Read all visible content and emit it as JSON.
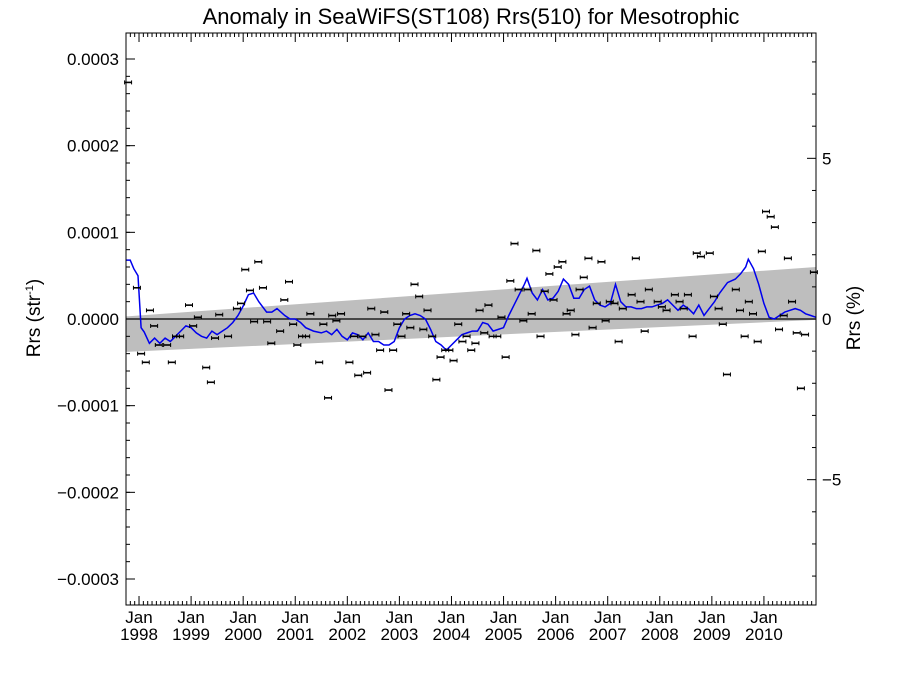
{
  "chart_data": {
    "type": "scatter",
    "title": "Anomaly in SeaWiFS(ST108) Rrs(510) for Mesotrophic",
    "ylabel_base": "Rrs (str",
    "ylabel_sup": "-1",
    "ylabel_end": ")",
    "y2label": "Rrs (%)",
    "xlim": [
      1997.75,
      2011.0
    ],
    "ylim": [
      -0.00033,
      0.00033
    ],
    "y2lim": [
      -8.9,
      8.9
    ],
    "y_ticks": [
      -0.0003,
      -0.0002,
      -0.0001,
      0.0,
      0.0001,
      0.0002,
      0.0003
    ],
    "y_tick_labels": [
      "−0.0003",
      "−0.0002",
      "−0.0001",
      "0.0000",
      "0.0001",
      "0.0002",
      "0.0003"
    ],
    "y2_ticks": [
      -5,
      0,
      5
    ],
    "y2_tick_labels": [
      "−5",
      "0",
      "5"
    ],
    "x_ticks": [
      {
        "x": 1998.0,
        "label1": "Jan",
        "label2": "1998"
      },
      {
        "x": 1999.0,
        "label1": "Jan",
        "label2": "1999"
      },
      {
        "x": 2000.0,
        "label1": "Jan",
        "label2": "2000"
      },
      {
        "x": 2001.0,
        "label1": "Jan",
        "label2": "2001"
      },
      {
        "x": 2002.0,
        "label1": "Jan",
        "label2": "2002"
      },
      {
        "x": 2003.0,
        "label1": "Jan",
        "label2": "2003"
      },
      {
        "x": 2004.0,
        "label1": "Jan",
        "label2": "2004"
      },
      {
        "x": 2005.0,
        "label1": "Jan",
        "label2": "2005"
      },
      {
        "x": 2006.0,
        "label1": "Jan",
        "label2": "2006"
      },
      {
        "x": 2007.0,
        "label1": "Jan",
        "label2": "2007"
      },
      {
        "x": 2008.0,
        "label1": "Jan",
        "label2": "2008"
      },
      {
        "x": 2009.0,
        "label1": "Jan",
        "label2": "2009"
      },
      {
        "x": 2010.0,
        "label1": "Jan",
        "label2": "2010"
      }
    ],
    "colors": {
      "smooth_line": "#0000ee",
      "trend_band": "#bebebe",
      "points": "#000000",
      "zero_line": "#000000"
    },
    "zero_line": 0.0,
    "trend_band": {
      "x": [
        1997.75,
        2011.0
      ],
      "upper": [
        3e-06,
        6e-05
      ],
      "lower": [
        -3.8e-05,
        -1e-06
      ]
    },
    "points": [
      {
        "x": 1997.79,
        "y": 0.000273
      },
      {
        "x": 1997.96,
        "y": 3.6e-05
      },
      {
        "x": 1998.04,
        "y": -4e-05
      },
      {
        "x": 1998.13,
        "y": -5e-05
      },
      {
        "x": 1998.21,
        "y": 1e-05
      },
      {
        "x": 1998.29,
        "y": -8e-06
      },
      {
        "x": 1998.38,
        "y": -3e-05
      },
      {
        "x": 1998.54,
        "y": -3e-05
      },
      {
        "x": 1998.63,
        "y": -5e-05
      },
      {
        "x": 1998.71,
        "y": -2e-05
      },
      {
        "x": 1998.79,
        "y": -2e-05
      },
      {
        "x": 1998.96,
        "y": 1.6e-05
      },
      {
        "x": 1999.04,
        "y": -8e-06
      },
      {
        "x": 1999.13,
        "y": 2e-06
      },
      {
        "x": 1999.29,
        "y": -5.6e-05
      },
      {
        "x": 1999.38,
        "y": -7.3e-05
      },
      {
        "x": 1999.46,
        "y": -2.2e-05
      },
      {
        "x": 1999.54,
        "y": 5e-06
      },
      {
        "x": 1999.71,
        "y": -2e-05
      },
      {
        "x": 1999.88,
        "y": 1.2e-05
      },
      {
        "x": 1999.96,
        "y": 1.8e-05
      },
      {
        "x": 2000.04,
        "y": 5.7e-05
      },
      {
        "x": 2000.13,
        "y": 3.3e-05
      },
      {
        "x": 2000.21,
        "y": -3e-06
      },
      {
        "x": 2000.29,
        "y": 6.6e-05
      },
      {
        "x": 2000.38,
        "y": 3.6e-05
      },
      {
        "x": 2000.46,
        "y": -3e-06
      },
      {
        "x": 2000.54,
        "y": -2.8e-05
      },
      {
        "x": 2000.71,
        "y": -1.4e-05
      },
      {
        "x": 2000.79,
        "y": 2.2e-05
      },
      {
        "x": 2000.88,
        "y": 4.3e-05
      },
      {
        "x": 2000.96,
        "y": -6e-06
      },
      {
        "x": 2001.04,
        "y": -3e-05
      },
      {
        "x": 2001.13,
        "y": -2e-05
      },
      {
        "x": 2001.21,
        "y": -2e-05
      },
      {
        "x": 2001.29,
        "y": 6e-06
      },
      {
        "x": 2001.46,
        "y": -5e-05
      },
      {
        "x": 2001.54,
        "y": -6e-06
      },
      {
        "x": 2001.63,
        "y": -9.1e-05
      },
      {
        "x": 2001.71,
        "y": 4e-06
      },
      {
        "x": 2001.79,
        "y": -2e-06
      },
      {
        "x": 2001.88,
        "y": 6e-06
      },
      {
        "x": 2002.04,
        "y": -5e-05
      },
      {
        "x": 2002.13,
        "y": -2e-05
      },
      {
        "x": 2002.21,
        "y": -6.5e-05
      },
      {
        "x": 2002.29,
        "y": -2e-05
      },
      {
        "x": 2002.38,
        "y": -6.2e-05
      },
      {
        "x": 2002.46,
        "y": 1.2e-05
      },
      {
        "x": 2002.54,
        "y": -1.8e-05
      },
      {
        "x": 2002.63,
        "y": -3.6e-05
      },
      {
        "x": 2002.71,
        "y": 8e-06
      },
      {
        "x": 2002.79,
        "y": -8.2e-05
      },
      {
        "x": 2002.88,
        "y": -3.6e-05
      },
      {
        "x": 2002.96,
        "y": -6e-06
      },
      {
        "x": 2003.04,
        "y": -2e-05
      },
      {
        "x": 2003.13,
        "y": 6e-06
      },
      {
        "x": 2003.21,
        "y": -1e-05
      },
      {
        "x": 2003.29,
        "y": 4e-05
      },
      {
        "x": 2003.38,
        "y": 2.6e-05
      },
      {
        "x": 2003.46,
        "y": -1.2e-05
      },
      {
        "x": 2003.54,
        "y": 1e-05
      },
      {
        "x": 2003.63,
        "y": -2e-05
      },
      {
        "x": 2003.71,
        "y": -7e-05
      },
      {
        "x": 2003.79,
        "y": -4.4e-05
      },
      {
        "x": 2003.88,
        "y": -3.6e-05
      },
      {
        "x": 2003.96,
        "y": -3.6e-05
      },
      {
        "x": 2004.04,
        "y": -4.8e-05
      },
      {
        "x": 2004.13,
        "y": -6e-06
      },
      {
        "x": 2004.21,
        "y": -2.6e-05
      },
      {
        "x": 2004.29,
        "y": -2e-05
      },
      {
        "x": 2004.38,
        "y": -3.6e-05
      },
      {
        "x": 2004.46,
        "y": -2.8e-05
      },
      {
        "x": 2004.54,
        "y": 1e-05
      },
      {
        "x": 2004.63,
        "y": -1.6e-05
      },
      {
        "x": 2004.71,
        "y": 1.6e-05
      },
      {
        "x": 2004.79,
        "y": -2e-05
      },
      {
        "x": 2004.88,
        "y": -2e-05
      },
      {
        "x": 2004.96,
        "y": 2e-06
      },
      {
        "x": 2005.04,
        "y": -4.4e-05
      },
      {
        "x": 2005.13,
        "y": 4.4e-05
      },
      {
        "x": 2005.21,
        "y": 8.7e-05
      },
      {
        "x": 2005.29,
        "y": 3.4e-05
      },
      {
        "x": 2005.38,
        "y": -2e-06
      },
      {
        "x": 2005.46,
        "y": 3.4e-05
      },
      {
        "x": 2005.54,
        "y": 6e-06
      },
      {
        "x": 2005.63,
        "y": 7.9e-05
      },
      {
        "x": 2005.71,
        "y": -2e-05
      },
      {
        "x": 2005.79,
        "y": 3.2e-05
      },
      {
        "x": 2005.88,
        "y": 5.2e-05
      },
      {
        "x": 2005.96,
        "y": 2.2e-05
      },
      {
        "x": 2006.04,
        "y": 6e-05
      },
      {
        "x": 2006.13,
        "y": 6.6e-05
      },
      {
        "x": 2006.21,
        "y": 6e-06
      },
      {
        "x": 2006.29,
        "y": 1e-05
      },
      {
        "x": 2006.38,
        "y": -1.8e-05
      },
      {
        "x": 2006.46,
        "y": 3.4e-05
      },
      {
        "x": 2006.54,
        "y": 4.8e-05
      },
      {
        "x": 2006.63,
        "y": 7e-05
      },
      {
        "x": 2006.71,
        "y": -1e-05
      },
      {
        "x": 2006.79,
        "y": 1.8e-05
      },
      {
        "x": 2006.88,
        "y": 6.6e-05
      },
      {
        "x": 2006.96,
        "y": -2e-06
      },
      {
        "x": 2007.04,
        "y": 2e-05
      },
      {
        "x": 2007.13,
        "y": 1.8e-05
      },
      {
        "x": 2007.21,
        "y": -2.6e-05
      },
      {
        "x": 2007.29,
        "y": 1.2e-05
      },
      {
        "x": 2007.46,
        "y": 2.8e-05
      },
      {
        "x": 2007.54,
        "y": 7e-05
      },
      {
        "x": 2007.63,
        "y": 2e-05
      },
      {
        "x": 2007.71,
        "y": -1.4e-05
      },
      {
        "x": 2007.79,
        "y": 3.4e-05
      },
      {
        "x": 2007.96,
        "y": 2e-05
      },
      {
        "x": 2008.04,
        "y": 1.4e-05
      },
      {
        "x": 2008.13,
        "y": 1e-05
      },
      {
        "x": 2008.29,
        "y": 2.8e-05
      },
      {
        "x": 2008.38,
        "y": 2e-05
      },
      {
        "x": 2008.46,
        "y": 1.2e-05
      },
      {
        "x": 2008.54,
        "y": 2.8e-05
      },
      {
        "x": 2008.63,
        "y": -2e-05
      },
      {
        "x": 2008.71,
        "y": 7.6e-05
      },
      {
        "x": 2008.79,
        "y": 7.2e-05
      },
      {
        "x": 2008.96,
        "y": 7.6e-05
      },
      {
        "x": 2009.04,
        "y": 2.6e-05
      },
      {
        "x": 2009.13,
        "y": 1.2e-05
      },
      {
        "x": 2009.21,
        "y": -6e-06
      },
      {
        "x": 2009.29,
        "y": -6.4e-05
      },
      {
        "x": 2009.46,
        "y": 3.4e-05
      },
      {
        "x": 2009.54,
        "y": 1e-05
      },
      {
        "x": 2009.63,
        "y": -2e-05
      },
      {
        "x": 2009.71,
        "y": 2e-05
      },
      {
        "x": 2009.79,
        "y": 6e-06
      },
      {
        "x": 2009.88,
        "y": -2.6e-05
      },
      {
        "x": 2009.96,
        "y": 7.8e-05
      },
      {
        "x": 2010.04,
        "y": 0.000124
      },
      {
        "x": 2010.13,
        "y": 0.000118
      },
      {
        "x": 2010.21,
        "y": 0.000106
      },
      {
        "x": 2010.29,
        "y": -1.2e-05
      },
      {
        "x": 2010.38,
        "y": 4e-06
      },
      {
        "x": 2010.46,
        "y": 7e-05
      },
      {
        "x": 2010.54,
        "y": 2e-05
      },
      {
        "x": 2010.63,
        "y": -1.6e-05
      },
      {
        "x": 2010.71,
        "y": -8e-05
      },
      {
        "x": 2010.79,
        "y": -1.8e-05
      },
      {
        "x": 2010.96,
        "y": 5.4e-05
      }
    ],
    "smooth_line": [
      [
        1997.75,
        6.8e-05
      ],
      [
        1997.83,
        6.8e-05
      ],
      [
        1997.9,
        5.8e-05
      ],
      [
        1997.98,
        5e-05
      ],
      [
        1998.04,
        -1e-05
      ],
      [
        1998.1,
        -1.5e-05
      ],
      [
        1998.2,
        -2.8e-05
      ],
      [
        1998.3,
        -2.2e-05
      ],
      [
        1998.4,
        -2.8e-05
      ],
      [
        1998.5,
        -2.2e-05
      ],
      [
        1998.6,
        -2.6e-05
      ],
      [
        1998.7,
        -2e-05
      ],
      [
        1998.8,
        -1.4e-05
      ],
      [
        1998.9,
        -8e-06
      ],
      [
        1999.0,
        -1e-05
      ],
      [
        1999.1,
        -1.6e-05
      ],
      [
        1999.2,
        -2e-05
      ],
      [
        1999.3,
        -2.2e-05
      ],
      [
        1999.4,
        -1.4e-05
      ],
      [
        1999.5,
        -1.8e-05
      ],
      [
        1999.6,
        -1.4e-05
      ],
      [
        1999.7,
        -1e-05
      ],
      [
        1999.8,
        -4e-06
      ],
      [
        1999.9,
        4e-06
      ],
      [
        2000.0,
        1.5e-05
      ],
      [
        2000.1,
        2.8e-05
      ],
      [
        2000.2,
        3e-05
      ],
      [
        2000.3,
        2e-05
      ],
      [
        2000.45,
        8e-06
      ],
      [
        2000.55,
        8e-06
      ],
      [
        2000.65,
        1.2e-05
      ],
      [
        2000.8,
        4e-06
      ],
      [
        2000.9,
        0.0
      ],
      [
        2001.0,
        0.0
      ],
      [
        2001.1,
        -4e-06
      ],
      [
        2001.2,
        -1e-05
      ],
      [
        2001.35,
        -1.4e-05
      ],
      [
        2001.5,
        -1.6e-05
      ],
      [
        2001.6,
        -1.4e-05
      ],
      [
        2001.7,
        -1.8e-05
      ],
      [
        2001.8,
        -1.2e-05
      ],
      [
        2001.9,
        -2e-05
      ],
      [
        2002.0,
        -2.4e-05
      ],
      [
        2002.1,
        -1.6e-05
      ],
      [
        2002.2,
        -1.8e-05
      ],
      [
        2002.3,
        -2.4e-05
      ],
      [
        2002.4,
        -1.6e-05
      ],
      [
        2002.5,
        -2.6e-05
      ],
      [
        2002.6,
        -2.6e-05
      ],
      [
        2002.7,
        -3e-05
      ],
      [
        2002.8,
        -3e-05
      ],
      [
        2002.9,
        -2.6e-05
      ],
      [
        2003.0,
        -1e-05
      ],
      [
        2003.1,
        0.0
      ],
      [
        2003.2,
        4e-06
      ],
      [
        2003.3,
        6e-06
      ],
      [
        2003.4,
        4e-06
      ],
      [
        2003.5,
        0.0
      ],
      [
        2003.6,
        -1.2e-05
      ],
      [
        2003.7,
        -2.6e-05
      ],
      [
        2003.8,
        -3e-05
      ],
      [
        2003.9,
        -3.6e-05
      ],
      [
        2004.0,
        -3e-05
      ],
      [
        2004.1,
        -2.4e-05
      ],
      [
        2004.2,
        -1.8e-05
      ],
      [
        2004.3,
        -1.6e-05
      ],
      [
        2004.4,
        -1.4e-05
      ],
      [
        2004.5,
        -1.4e-05
      ],
      [
        2004.6,
        -4e-06
      ],
      [
        2004.7,
        -6e-06
      ],
      [
        2004.8,
        -1.4e-05
      ],
      [
        2004.9,
        -1.2e-05
      ],
      [
        2005.0,
        -1e-05
      ],
      [
        2005.1,
        4e-06
      ],
      [
        2005.2,
        1.6e-05
      ],
      [
        2005.3,
        2.8e-05
      ],
      [
        2005.4,
        4e-05
      ],
      [
        2005.45,
        4.7e-05
      ],
      [
        2005.55,
        3e-05
      ],
      [
        2005.65,
        2.2e-05
      ],
      [
        2005.75,
        3.4e-05
      ],
      [
        2005.85,
        2.2e-05
      ],
      [
        2005.95,
        2.4e-05
      ],
      [
        2006.05,
        3.2e-05
      ],
      [
        2006.15,
        4.6e-05
      ],
      [
        2006.25,
        4e-05
      ],
      [
        2006.35,
        2.4e-05
      ],
      [
        2006.45,
        2.4e-05
      ],
      [
        2006.55,
        3.4e-05
      ],
      [
        2006.65,
        3.8e-05
      ],
      [
        2006.75,
        2.2e-05
      ],
      [
        2006.85,
        1.6e-05
      ],
      [
        2006.95,
        1.4e-05
      ],
      [
        2007.05,
        1.8e-05
      ],
      [
        2007.15,
        4e-05
      ],
      [
        2007.25,
        2e-05
      ],
      [
        2007.35,
        1.4e-05
      ],
      [
        2007.45,
        1.4e-05
      ],
      [
        2007.55,
        1.2e-05
      ],
      [
        2007.65,
        1.2e-05
      ],
      [
        2007.75,
        1.4e-05
      ],
      [
        2007.85,
        1.4e-05
      ],
      [
        2007.95,
        1.6e-05
      ],
      [
        2008.05,
        1.8e-05
      ],
      [
        2008.15,
        2.2e-05
      ],
      [
        2008.25,
        1.6e-05
      ],
      [
        2008.35,
        1e-05
      ],
      [
        2008.45,
        1.6e-05
      ],
      [
        2008.55,
        1.2e-05
      ],
      [
        2008.65,
        6e-06
      ],
      [
        2008.75,
        1.6e-05
      ],
      [
        2008.85,
        4e-06
      ],
      [
        2008.95,
        1.2e-05
      ],
      [
        2009.05,
        2e-05
      ],
      [
        2009.15,
        3e-05
      ],
      [
        2009.3,
        4.2e-05
      ],
      [
        2009.45,
        4.6e-05
      ],
      [
        2009.55,
        5.2e-05
      ],
      [
        2009.65,
        6e-05
      ],
      [
        2009.7,
        6.9e-05
      ],
      [
        2009.8,
        5.8e-05
      ],
      [
        2009.9,
        4e-05
      ],
      [
        2010.0,
        1.8e-05
      ],
      [
        2010.1,
        2e-06
      ],
      [
        2010.2,
        0.0
      ],
      [
        2010.3,
        4e-06
      ],
      [
        2010.4,
        8e-06
      ],
      [
        2010.5,
        1e-05
      ],
      [
        2010.6,
        1.2e-05
      ],
      [
        2010.7,
        1e-05
      ],
      [
        2010.8,
        6e-06
      ],
      [
        2010.9,
        4e-06
      ],
      [
        2011.0,
        2e-06
      ]
    ],
    "grid": false,
    "legend": "none"
  }
}
